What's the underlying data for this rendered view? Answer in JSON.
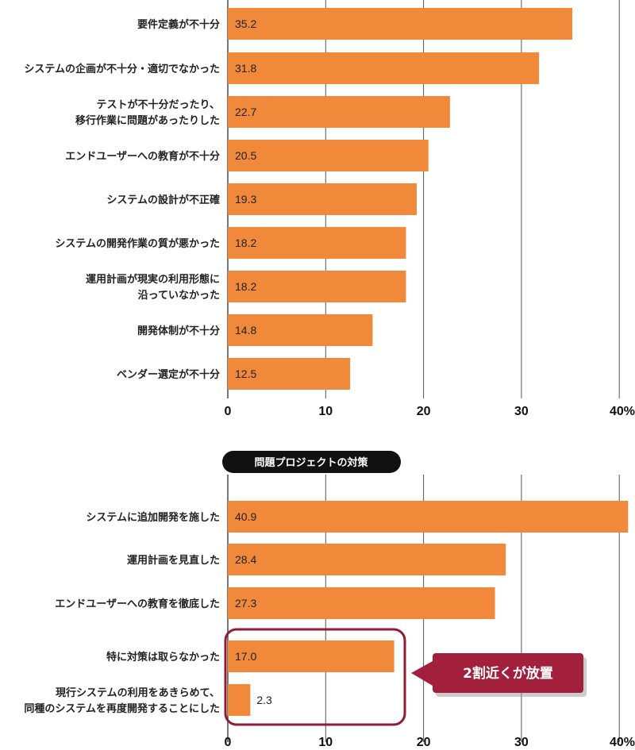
{
  "colors": {
    "bar": "#f08a3a",
    "grid": "#555555",
    "title_bg": "#111111",
    "callout_bg": "#a3203c",
    "callout_border": "#8e1d35"
  },
  "chart_data": [
    {
      "type": "bar",
      "orientation": "horizontal",
      "title": "",
      "categories": [
        "要件定義が不十分",
        "システムの企画が不十分・適切でなかった",
        "テストが不十分だったり、\n移行作業に問題があったりした",
        "エンドユーザーへの教育が不十分",
        "システムの設計が不正確",
        "システムの開発作業の質が悪かった",
        "運用計画が現実の利用形態に\n沿っていなかった",
        "開発体制が不十分",
        "ベンダー選定が不十分"
      ],
      "values": [
        35.2,
        31.8,
        22.7,
        20.5,
        19.3,
        18.2,
        18.2,
        14.8,
        12.5
      ],
      "value_labels": [
        "35.2",
        "31.8",
        "22.7",
        "20.5",
        "19.3",
        "18.2",
        "18.2",
        "14.8",
        "12.5"
      ],
      "xlim": [
        0,
        40
      ],
      "ticks": [
        "0",
        "10",
        "20",
        "30",
        "40%"
      ],
      "grid": true
    },
    {
      "type": "bar",
      "orientation": "horizontal",
      "title": "問題プロジェクトの対策",
      "categories": [
        "システムに追加開発を施した",
        "運用計画を見直した",
        "エンドユーザーへの教育を徹底した",
        "特に対策は取らなかった",
        "現行システムの利用をあきらめて、\n同種のシステムを再度開発することにした"
      ],
      "values": [
        40.9,
        28.4,
        27.3,
        17.0,
        2.3
      ],
      "value_labels": [
        "40.9",
        "28.4",
        "27.3",
        "17.0",
        "2.3"
      ],
      "xlim": [
        0,
        40
      ],
      "ticks": [
        "0",
        "10",
        "20",
        "30",
        "40%"
      ],
      "grid": true,
      "annotation": "2割近くが放置",
      "highlighted_categories": [
        "特に対策は取らなかった",
        "現行システムの利用をあきらめて、\n同種のシステムを再度開発することにした"
      ]
    }
  ]
}
